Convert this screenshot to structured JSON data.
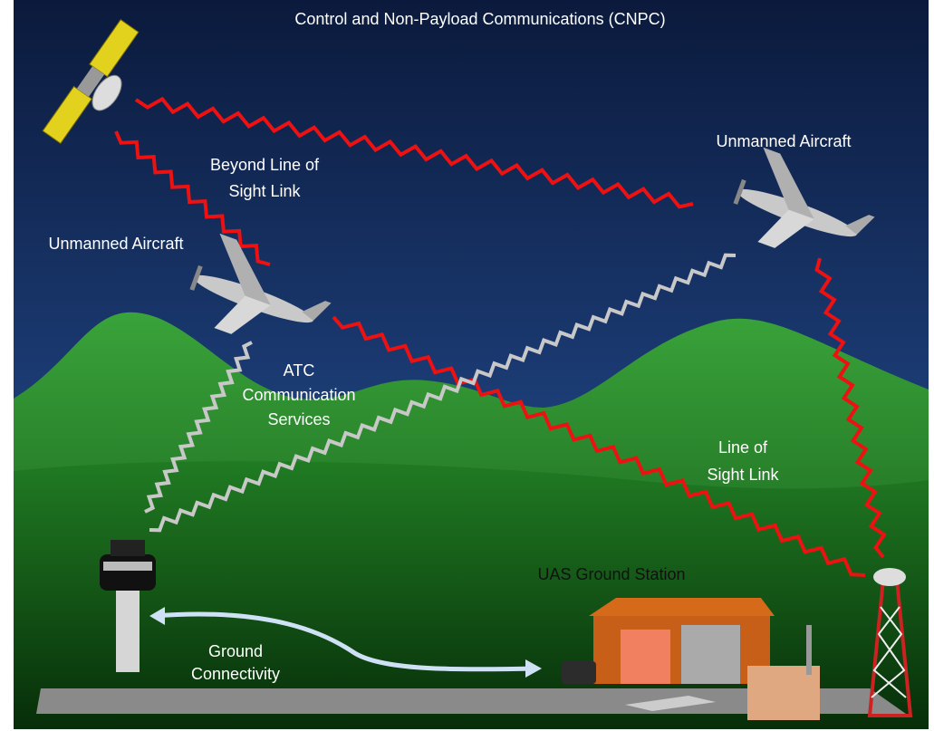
{
  "title": "Control and Non-Payload Communications (CNPC)",
  "labels": [
    {
      "lines": [
        "Unmanned Aircraft"
      ]
    },
    {
      "lines": [
        "Beyond Line of",
        "Sight Link"
      ]
    },
    {
      "lines": [
        "Unmanned Aircraft"
      ]
    },
    {
      "lines": [
        "ATC",
        "Communication",
        "Services"
      ]
    },
    {
      "lines": [
        "Line of",
        "Sight Link"
      ]
    },
    {
      "lines": [
        "UAS Ground Station"
      ]
    },
    {
      "lines": [
        "Ground",
        "Connectivity"
      ]
    }
  ]
}
